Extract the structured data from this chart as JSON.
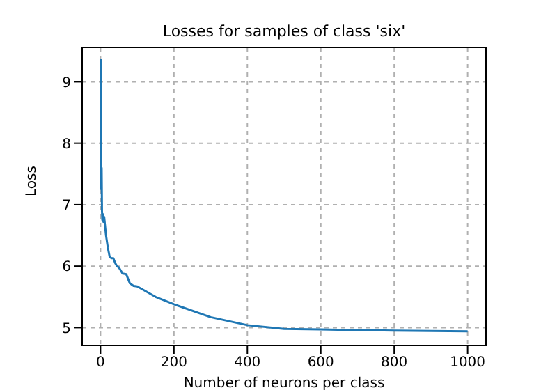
{
  "chart_data": {
    "type": "line",
    "title": "Losses for samples of class 'six'",
    "xlabel": "Number of neurons per class",
    "ylabel": "Loss",
    "x": [
      1,
      2,
      3,
      4,
      5,
      6,
      8,
      10,
      15,
      20,
      25,
      30,
      35,
      40,
      45,
      50,
      55,
      60,
      70,
      80,
      90,
      100,
      150,
      200,
      300,
      400,
      500,
      600,
      800,
      1000
    ],
    "series": [
      {
        "color": "#1f77b4",
        "values": [
          9.38,
          7.25,
          7.6,
          6.9,
          6.75,
          6.85,
          6.72,
          6.8,
          6.5,
          6.3,
          6.15,
          6.13,
          6.13,
          6.05,
          6.0,
          5.98,
          5.93,
          5.88,
          5.87,
          5.72,
          5.68,
          5.67,
          5.5,
          5.38,
          5.17,
          5.04,
          4.98,
          4.97,
          4.95,
          4.94
        ]
      }
    ],
    "xlim": [
      -50,
      1050
    ],
    "xticks": [
      0,
      200,
      400,
      600,
      800,
      1000
    ],
    "ylim": [
      4.71,
      9.56
    ],
    "yticks": [
      5,
      6,
      7,
      8,
      9
    ],
    "grid": true,
    "marker": "none",
    "line_style": "solid"
  }
}
